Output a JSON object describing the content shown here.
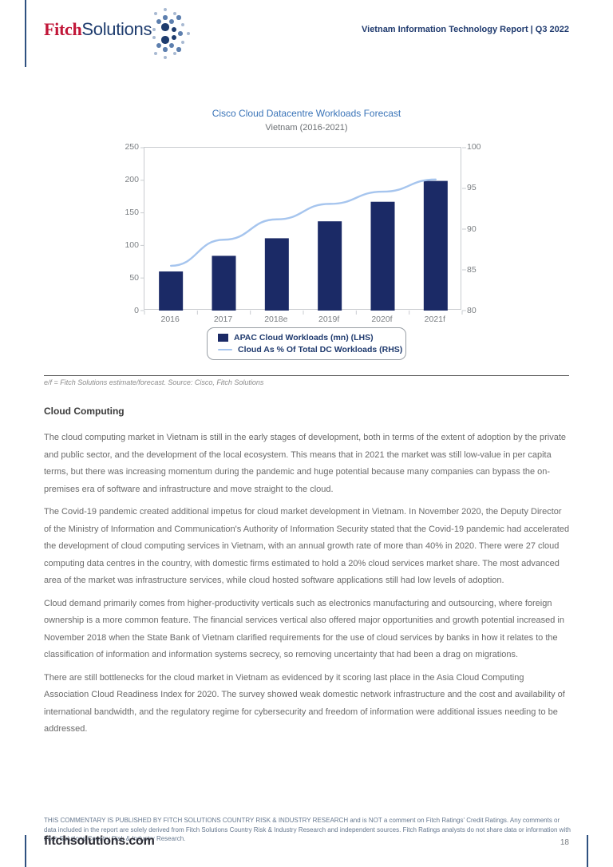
{
  "header": {
    "logo": {
      "fitch": "Fitch",
      "solutions": "Solutions"
    },
    "report_title": "Vietnam Information Technology Report | Q3 2022"
  },
  "chart_data": {
    "type": "bar",
    "title": "Cisco Cloud Datacentre Workloads Forecast",
    "subtitle": "Vietnam (2016-2021)",
    "categories": [
      "2016",
      "2017",
      "2018e",
      "2019f",
      "2020f",
      "2021f"
    ],
    "series": [
      {
        "name": "APAC Cloud Workloads (mn) (LHS)",
        "type": "bar",
        "axis": "left",
        "color": "#1b2a66",
        "values": [
          60,
          84,
          111,
          137,
          167,
          199
        ]
      },
      {
        "name": "Cloud As % Of Total DC Workloads (RHS)",
        "type": "line",
        "axis": "right",
        "color": "#a6c5ee",
        "values": [
          85.5,
          88.7,
          91.2,
          93.1,
          94.6,
          96.1
        ]
      }
    ],
    "left_axis": {
      "min": 0,
      "max": 250,
      "ticks": [
        "250",
        "200",
        "150",
        "100",
        "50",
        "0"
      ]
    },
    "right_axis": {
      "min": 80,
      "max": 100,
      "ticks": [
        "100",
        "95",
        "90",
        "85",
        "80"
      ]
    },
    "legend_position": "bottom",
    "grid": "off"
  },
  "chart_note": "e/f = Fitch Solutions estimate/forecast. Source: Cisco, Fitch Solutions",
  "article": {
    "heading": "Cloud Computing",
    "paragraphs": [
      "The cloud computing market in Vietnam is still in the early stages of development, both in terms of the extent of adoption by the private and public sector, and the development of the local ecosystem. This means that in 2021 the market was still low-value in per capita terms, but there was increasing momentum during the pandemic and huge potential because many companies can bypass the on-premises era of software and infrastructure and move straight to the cloud.",
      "The Covid-19 pandemic created additional impetus for cloud market development in Vietnam. In November 2020, the Deputy Director of the Ministry of Information and Communication's Authority of Information Security stated that the Covid-19 pandemic had accelerated the development of cloud computing services in Vietnam, with an annual growth rate of more than 40% in 2020. There were 27 cloud computing data centres in the country, with domestic firms estimated to hold a 20% cloud services market share. The most advanced area of the market was infrastructure services, while cloud hosted software applications still had low levels of adoption.",
      "Cloud demand primarily comes from higher-productivity verticals such as electronics manufacturing and outsourcing, where foreign ownership is a more common feature. The financial services vertical also offered major opportunities and growth potential increased in November 2018 when the State Bank of Vietnam clarified requirements for the use of cloud services by banks in how it relates to the classification of information and information systems secrecy, so removing uncertainty that had been a drag on migrations.",
      "There are still bottlenecks for the cloud market in Vietnam as evidenced by it scoring last place in the Asia Cloud Computing Association Cloud Readiness Index for 2020. The survey showed weak domestic network infrastructure and the cost and availability of international bandwidth, and the regulatory regime for cybersecurity and freedom of information were additional issues needing to be addressed."
    ]
  },
  "footer": {
    "disclaimer": "THIS COMMENTARY IS PUBLISHED BY FITCH SOLUTIONS COUNTRY RISK & INDUSTRY RESEARCH and is NOT a comment on Fitch Ratings' Credit Ratings. Any comments or data included in the report are solely derived from Fitch Solutions Country Risk & Industry Research and independent sources. Fitch Ratings analysts do not share data or information with Fitch Solutions Country Risk & Industry Research.",
    "website": "fitchsolutions.com",
    "page_number": "18"
  },
  "colors": {
    "brand_red": "#c11638",
    "brand_navy": "#1e3c6e",
    "bar": "#1b2a66",
    "line": "#a6c5ee",
    "chart_title_blue": "#3a74b8",
    "axis_gray": "#7a7e82",
    "edge_line": "#2f5180"
  }
}
